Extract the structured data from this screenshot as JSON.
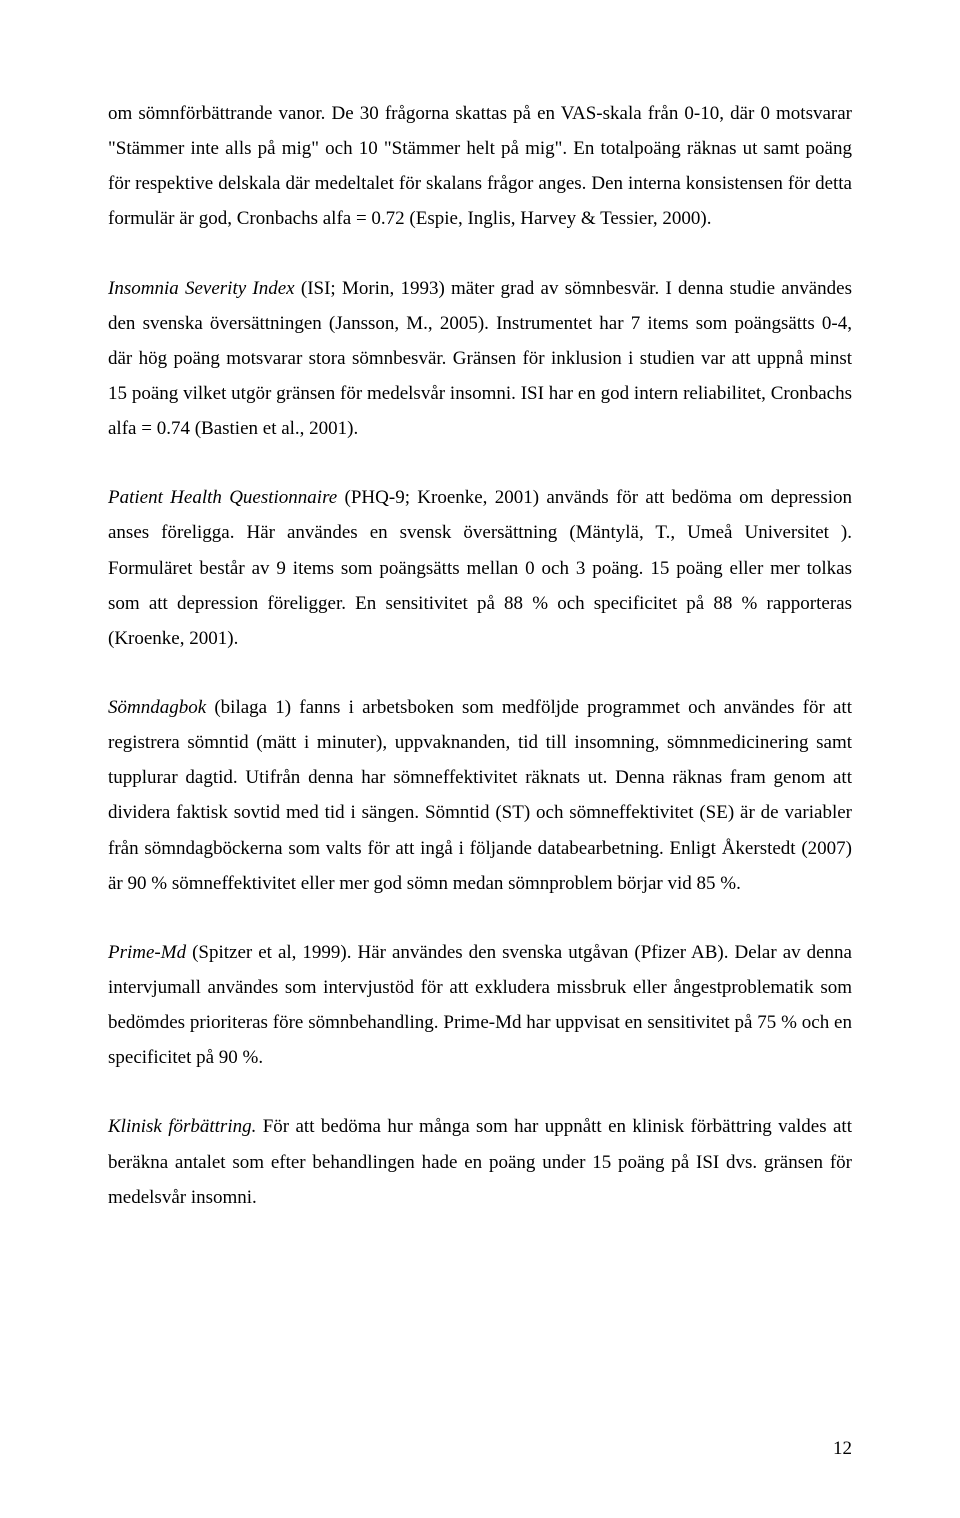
{
  "paragraphs": {
    "p1": {
      "text": "om sömnförbättrande vanor. De 30 frågorna skattas på en VAS-skala från 0-10, där 0 motsvarar \"Stämmer inte alls på mig\" och 10 \"Stämmer helt på mig\". En totalpoäng räknas ut samt poäng för respektive delskala där medeltalet för skalans frågor anges. Den interna konsistensen för detta formulär är god, Cronbachs alfa = 0.72 (Espie, Inglis, Harvey & Tessier, 2000)."
    },
    "p2": {
      "lead_italic": "Insomnia Severity Index",
      "rest": " (ISI; Morin, 1993) mäter grad av sömnbesvär. I denna studie användes den svenska översättningen (Jansson, M., 2005). Instrumentet har 7 items som poängsätts 0-4, där hög poäng motsvarar stora sömnbesvär. Gränsen för inklusion i studien var att uppnå minst 15 poäng vilket utgör gränsen för medelsvår insomni. ISI har en god intern reliabilitet, Cronbachs alfa = 0.74 (Bastien et al., 2001)."
    },
    "p3": {
      "lead_italic": "Patient Health Questionnaire",
      "rest": " (PHQ-9; Kroenke, 2001) används för att bedöma om depression anses föreligga.  Här användes en svensk översättning (Mäntylä, T., Umeå Universitet ). Formuläret består av 9 items som poängsätts mellan 0 och 3 poäng. 15 poäng eller mer tolkas som att depression föreligger. En sensitivitet på 88 % och specificitet på 88 % rapporteras (Kroenke, 2001)."
    },
    "p4": {
      "lead_italic": "Sömndagbok",
      "rest": " (bilaga 1) fanns i arbetsboken som medföljde programmet och användes för att registrera sömntid (mätt i minuter), uppvaknanden, tid till insomning, sömnmedicinering samt tupplurar dagtid. Utifrån denna har sömneffektivitet räknats ut. Denna räknas fram genom att dividera faktisk sovtid med tid i sängen. Sömntid (ST) och sömneffektivitet (SE) är de variabler från sömndagböckerna som valts för att ingå i följande databearbetning. Enligt Åkerstedt (2007) är 90 % sömneffektivitet eller mer god sömn medan sömnproblem börjar vid 85 %."
    },
    "p5": {
      "lead_italic": "Prime-Md",
      "rest": " (Spitzer et al, 1999). Här användes den svenska utgåvan (Pfizer AB). Delar av denna intervjumall användes som intervjustöd för att exkludera missbruk eller ångestproblematik som bedömdes prioriteras före sömnbehandling. Prime-Md har uppvisat en sensitivitet på 75 % och en specificitet på 90 %."
    },
    "p6": {
      "lead_italic": "Klinisk förbättring.",
      "rest": "  För att bedöma hur många som har uppnått en klinisk förbättring valdes att beräkna antalet som efter behandlingen hade en poäng under 15 poäng på ISI dvs.  gränsen för medelsvår insomni."
    }
  },
  "page_number": "12"
}
